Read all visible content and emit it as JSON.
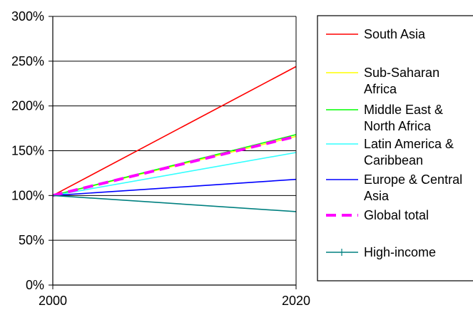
{
  "chart_data": {
    "type": "line",
    "title": "",
    "xlabel": "",
    "ylabel": "",
    "x": [
      2000,
      2020
    ],
    "x_tick_labels": [
      "2000",
      "2020"
    ],
    "ylim": [
      0,
      300
    ],
    "y_ticks": [
      0,
      50,
      100,
      150,
      200,
      250,
      300
    ],
    "y_tick_labels": [
      "0%",
      "50%",
      "100%",
      "150%",
      "200%",
      "250%",
      "300%"
    ],
    "grid": "horizontal",
    "legend_placement": "right",
    "series": [
      {
        "name": "South Asia",
        "values": [
          100,
          244
        ],
        "color": "#ff0000",
        "dash": "solid"
      },
      {
        "name": "Sub-Saharan Africa",
        "values": [
          100,
          166
        ],
        "color": "#ffff00",
        "dash": "solid"
      },
      {
        "name": "Middle East & North Africa",
        "values": [
          100,
          168
        ],
        "color": "#00ff00",
        "dash": "solid"
      },
      {
        "name": "Latin America & Caribbean",
        "values": [
          100,
          148
        ],
        "color": "#33ffff",
        "dash": "solid"
      },
      {
        "name": "Europe & Central Asia",
        "values": [
          100,
          118
        ],
        "color": "#0000ff",
        "dash": "solid"
      },
      {
        "name": "Global total",
        "values": [
          100,
          166
        ],
        "color": "#ff00ff",
        "dash": "dashed"
      },
      {
        "name": "High-income",
        "values": [
          100,
          82
        ],
        "color": "#008080",
        "dash": "solid",
        "marker": "plus"
      }
    ]
  }
}
